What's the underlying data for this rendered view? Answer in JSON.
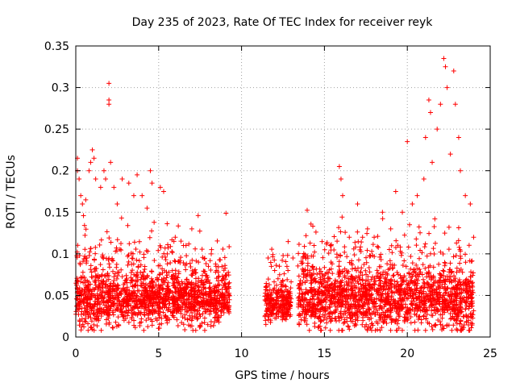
{
  "chart_data": {
    "type": "scatter",
    "title": "Day 235 of 2023, Rate Of TEC Index for receiver reyk",
    "xlabel": "GPS time / hours",
    "ylabel": "ROTI / TECUs",
    "xlim": [
      0,
      25
    ],
    "ylim": [
      0,
      0.35
    ],
    "x_ticks": [
      "0",
      "5",
      "10",
      "15",
      "20",
      "25"
    ],
    "y_ticks": [
      "0",
      "0.05",
      "0.1",
      "0.15",
      "0.2",
      "0.25",
      "0.3",
      "0.35"
    ],
    "grid": true,
    "legend": "none",
    "marker": "+",
    "color": "#ff0000",
    "series": [
      {
        "points": [
          [
            0.1,
            0.215
          ],
          [
            0.1,
            0.2
          ],
          [
            0.2,
            0.19
          ],
          [
            0.3,
            0.17
          ],
          [
            0.4,
            0.16
          ],
          [
            0.6,
            0.165
          ],
          [
            0.8,
            0.2
          ],
          [
            0.9,
            0.21
          ],
          [
            1.0,
            0.225
          ],
          [
            1.1,
            0.215
          ],
          [
            1.2,
            0.19
          ],
          [
            1.5,
            0.18
          ],
          [
            1.7,
            0.2
          ],
          [
            1.8,
            0.19
          ],
          [
            2.0,
            0.28
          ],
          [
            2.0,
            0.305
          ],
          [
            2.0,
            0.285
          ],
          [
            2.1,
            0.21
          ],
          [
            2.3,
            0.18
          ],
          [
            2.5,
            0.16
          ],
          [
            2.8,
            0.19
          ],
          [
            3.2,
            0.185
          ],
          [
            3.5,
            0.17
          ],
          [
            3.7,
            0.195
          ],
          [
            4.0,
            0.17
          ],
          [
            4.3,
            0.155
          ],
          [
            4.5,
            0.2
          ],
          [
            4.6,
            0.185
          ],
          [
            5.1,
            0.18
          ],
          [
            5.3,
            0.175
          ],
          [
            6.0,
            0.12
          ],
          [
            6.5,
            0.11
          ],
          [
            7.0,
            0.13
          ],
          [
            7.4,
            0.09
          ],
          [
            8.0,
            0.085
          ],
          [
            8.5,
            0.08
          ],
          [
            8.9,
            0.07
          ],
          [
            9.2,
            0.06
          ],
          [
            11.6,
            0.095
          ],
          [
            11.8,
            0.085
          ],
          [
            12.2,
            0.07
          ],
          [
            12.8,
            0.08
          ],
          [
            13.1,
            0.095
          ],
          [
            13.7,
            0.095
          ],
          [
            14.3,
            0.085
          ],
          [
            15.0,
            0.07
          ],
          [
            15.4,
            0.09
          ],
          [
            15.9,
            0.205
          ],
          [
            16.0,
            0.19
          ],
          [
            16.1,
            0.17
          ],
          [
            16.5,
            0.12
          ],
          [
            17.0,
            0.16
          ],
          [
            17.3,
            0.12
          ],
          [
            17.6,
            0.13
          ],
          [
            18.0,
            0.12
          ],
          [
            18.5,
            0.15
          ],
          [
            19.0,
            0.13
          ],
          [
            19.3,
            0.175
          ],
          [
            19.7,
            0.15
          ],
          [
            20.0,
            0.235
          ],
          [
            20.3,
            0.16
          ],
          [
            20.6,
            0.17
          ],
          [
            21.0,
            0.19
          ],
          [
            21.1,
            0.24
          ],
          [
            21.3,
            0.285
          ],
          [
            21.4,
            0.27
          ],
          [
            21.5,
            0.21
          ],
          [
            21.8,
            0.25
          ],
          [
            22.0,
            0.28
          ],
          [
            22.2,
            0.335
          ],
          [
            22.3,
            0.325
          ],
          [
            22.4,
            0.3
          ],
          [
            22.6,
            0.22
          ],
          [
            22.8,
            0.32
          ],
          [
            22.9,
            0.28
          ],
          [
            23.1,
            0.24
          ],
          [
            23.2,
            0.2
          ],
          [
            23.5,
            0.17
          ],
          [
            23.8,
            0.16
          ],
          [
            24.0,
            0.12
          ]
        ]
      }
    ]
  }
}
